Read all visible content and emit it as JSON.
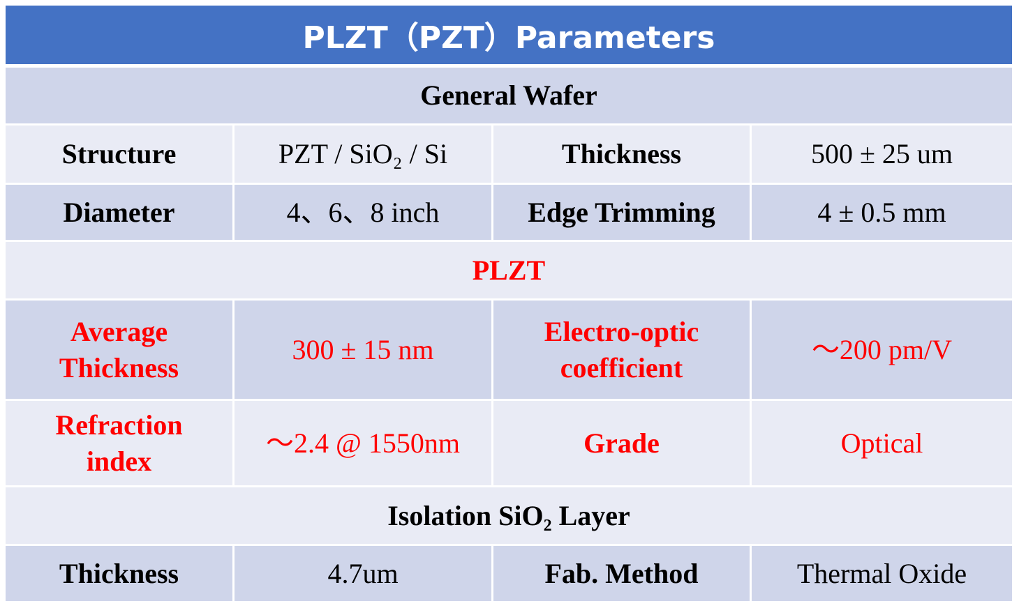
{
  "title": "PLZT（PZT）Parameters",
  "sections": [
    {
      "heading": "General Wafer",
      "rows": [
        [
          "Structure",
          "PZT / SiO₂ / Si",
          "Thickness",
          "500 ± 25 um"
        ],
        [
          "Diameter",
          "4、6、8 inch",
          "Edge Trimming",
          "4 ± 0.5 mm"
        ]
      ]
    },
    {
      "heading": "PLZT",
      "rows": [
        [
          "Average Thickness",
          "300 ± 15 nm",
          "Electro-optic coefficient",
          "～200 pm/V"
        ],
        [
          "Refraction index",
          "～2.4 @ 1550nm",
          "Grade",
          "Optical"
        ]
      ]
    },
    {
      "heading": "Isolation SiO₂ Layer",
      "rows": [
        [
          "Thickness",
          "4.7um",
          "Fab. Method",
          "Thermal Oxide"
        ]
      ]
    }
  ]
}
